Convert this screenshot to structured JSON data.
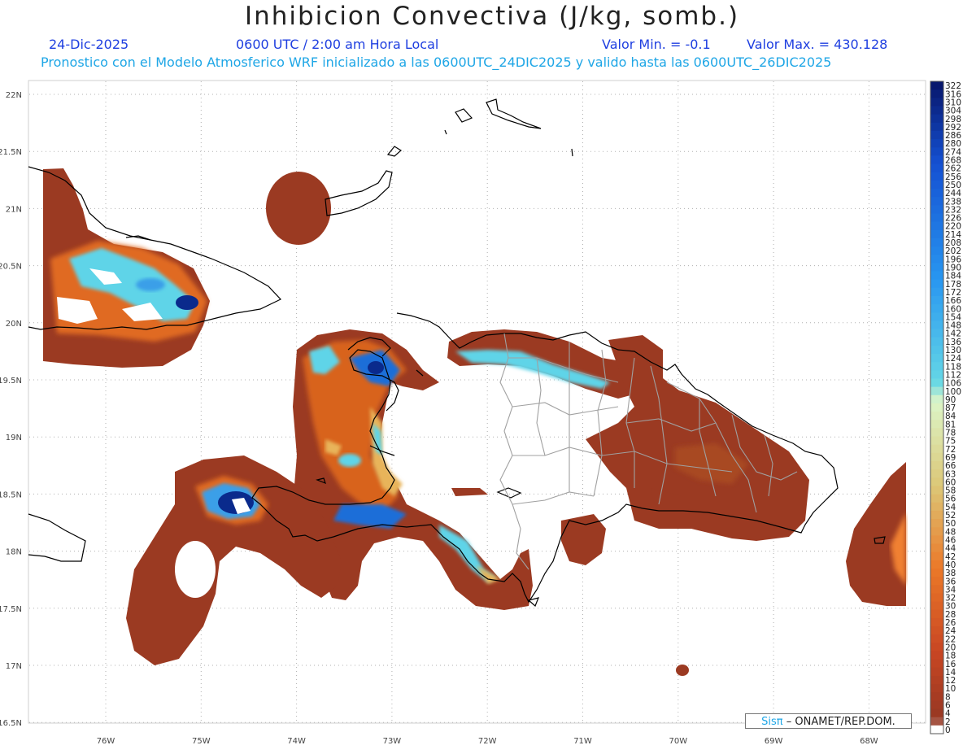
{
  "header": {
    "title": "Inhibicion Convectiva (J/kg, somb.)",
    "date": "24-Dic-2025",
    "time": "0600 UTC / 2:00 am Hora Local",
    "valmin": "Valor Min. = -0.1",
    "valmax": "Valor Max. = 430.128",
    "forecast": "Pronostico con el Modelo Atmosferico WRF inicializado a las 0600UTC_24DIC2025 y valido hasta las  0600UTC_26DIC2025"
  },
  "axes": {
    "lon_labels": [
      "76W",
      "75W",
      "74W",
      "73W",
      "72W",
      "71W",
      "70W",
      "69W",
      "68W"
    ],
    "lat_labels": [
      "22N",
      "21.5N",
      "21N",
      "20.5N",
      "20N",
      "19.5N",
      "19N",
      "18.5N",
      "18N",
      "17.5N",
      "17N",
      "16.5N"
    ]
  },
  "colorbar": {
    "labels": [
      "322",
      "316",
      "310",
      "304",
      "298",
      "292",
      "286",
      "280",
      "274",
      "268",
      "262",
      "256",
      "250",
      "244",
      "238",
      "232",
      "226",
      "220",
      "214",
      "208",
      "202",
      "196",
      "190",
      "184",
      "178",
      "172",
      "166",
      "160",
      "154",
      "148",
      "142",
      "136",
      "130",
      "124",
      "118",
      "112",
      "106",
      "100",
      "90",
      "87",
      "84",
      "81",
      "78",
      "75",
      "72",
      "69",
      "66",
      "63",
      "60",
      "58",
      "56",
      "54",
      "52",
      "50",
      "48",
      "46",
      "44",
      "42",
      "40",
      "38",
      "36",
      "34",
      "32",
      "30",
      "28",
      "26",
      "24",
      "22",
      "20",
      "18",
      "16",
      "14",
      "12",
      "10",
      "8",
      "6",
      "4",
      "2",
      "0"
    ]
  },
  "credit": {
    "brand": "Sisπ",
    "text": "– ONAMET/REP.DOM."
  },
  "colors": {
    "field_base": "#9b3a22",
    "field_mid": "#d8641e",
    "field_light": "#e8b45a",
    "cyan": "#5fd4e8",
    "blue": "#1e6ed8",
    "darkblue": "#0a2a8c",
    "coast": "#000000",
    "provinces": "#a0a0a0"
  }
}
